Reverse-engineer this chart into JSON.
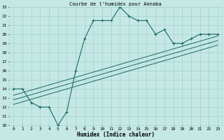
{
  "title": "Courbe de l'humidex pour Annaba",
  "xlabel": "Humidex (Indice chaleur)",
  "xlim": [
    -0.5,
    23.5
  ],
  "ylim": [
    10,
    23
  ],
  "xticks": [
    0,
    1,
    2,
    3,
    4,
    5,
    6,
    7,
    8,
    9,
    10,
    11,
    12,
    13,
    14,
    15,
    16,
    17,
    18,
    19,
    20,
    21,
    22,
    23
  ],
  "yticks": [
    10,
    11,
    12,
    13,
    14,
    15,
    16,
    17,
    18,
    19,
    20,
    21,
    22,
    23
  ],
  "bg_color": "#c5e8e5",
  "grid_color": "#a8d4d0",
  "line_color": "#1a6b60",
  "main_x": [
    0,
    1,
    2,
    3,
    4,
    5,
    6,
    7,
    8,
    9,
    10,
    11,
    12,
    13,
    14,
    15,
    16,
    17,
    18,
    19,
    20,
    21,
    22,
    23
  ],
  "main_y": [
    14.0,
    14.0,
    12.5,
    12.0,
    12.0,
    10.0,
    11.5,
    16.0,
    19.5,
    21.5,
    21.5,
    21.5,
    23.0,
    22.0,
    21.5,
    21.5,
    20.0,
    20.5,
    19.0,
    19.0,
    19.5,
    20.0,
    20.0,
    20.0
  ],
  "line1_x": [
    0,
    23
  ],
  "line1_y": [
    12.3,
    18.8
  ],
  "line2_x": [
    0,
    23
  ],
  "line2_y": [
    12.8,
    19.3
  ],
  "line3_x": [
    0,
    23
  ],
  "line3_y": [
    13.3,
    19.8
  ]
}
